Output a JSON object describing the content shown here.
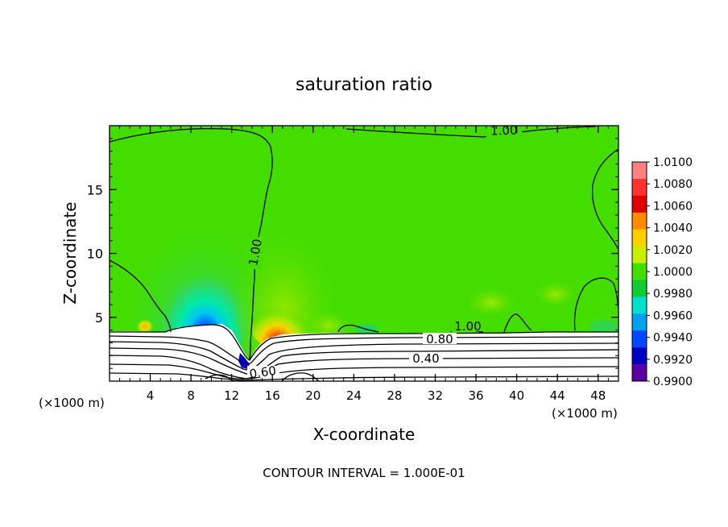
{
  "chart_data": {
    "type": "heatmap",
    "title": "saturation ratio",
    "xlabel": "X-coordinate",
    "ylabel": "Z-coordinate",
    "x_unit_left": "(×1000 m)",
    "x_unit_right": "(×1000 m)",
    "xlim": [
      0,
      50
    ],
    "ylim": [
      0,
      20
    ],
    "x_ticks": [
      4,
      8,
      12,
      16,
      20,
      24,
      28,
      32,
      36,
      40,
      44,
      48
    ],
    "y_ticks": [
      5,
      10,
      15
    ],
    "footer": "CONTOUR INTERVAL = 1.000E-01",
    "colorbar": {
      "levels": [
        "1.0100",
        "1.0080",
        "1.0060",
        "1.0040",
        "1.0020",
        "1.0000",
        "0.9980",
        "0.9960",
        "0.9940",
        "0.9920",
        "0.9900"
      ],
      "colors": [
        "#ff8080",
        "#ff3030",
        "#e00000",
        "#ff8c00",
        "#ffd000",
        "#c8ee00",
        "#44dd00",
        "#11cc33",
        "#00e0d0",
        "#00a0f0",
        "#0048ff",
        "#0000c0",
        "#5a00a0"
      ]
    },
    "contour_labels": [
      {
        "text": "1.00",
        "x": 32.0,
        "z": 19.3
      },
      {
        "text": "1.00",
        "x": 14.0,
        "z": 10.0
      },
      {
        "text": "1.00",
        "x": 34.5,
        "z": 4.1
      },
      {
        "text": "0.80",
        "x": 31.0,
        "z": 3.3
      },
      {
        "text": "0.40",
        "x": 30.0,
        "z": 1.9
      },
      {
        "text": "0.60",
        "x": 14.8,
        "z": 0.8
      }
    ]
  }
}
